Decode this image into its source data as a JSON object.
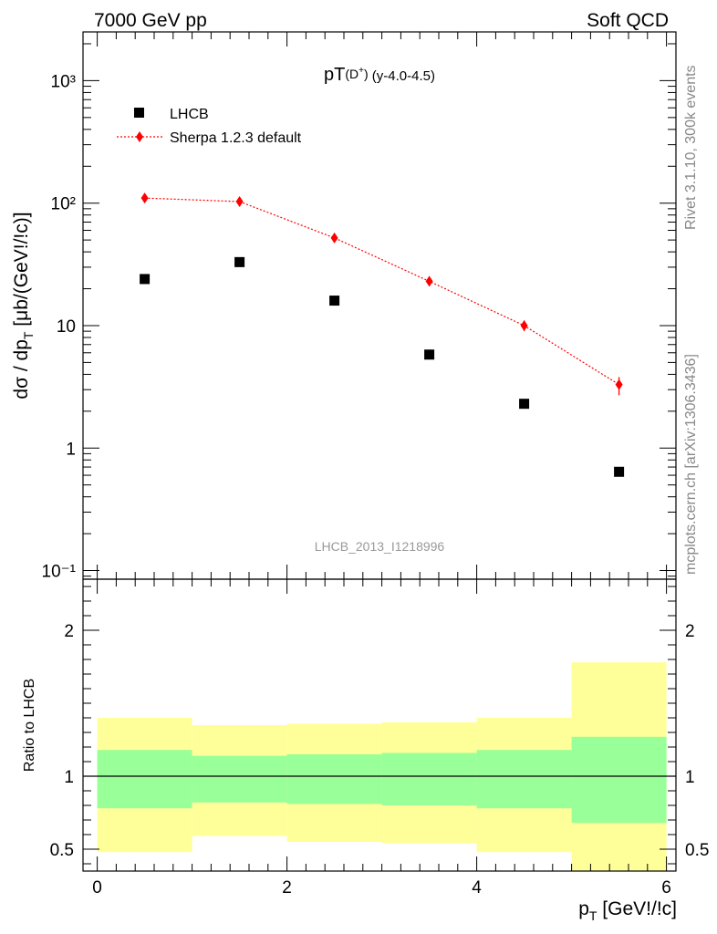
{
  "header": {
    "left": "7000 GeV pp",
    "right": "Soft QCD"
  },
  "side_labels": {
    "rivet": "Rivet 3.1.10,  300k events",
    "mcplots": "mcplots.cern.ch [arXiv:1306.3436]"
  },
  "chart_data": [
    {
      "type": "scatter",
      "title": "pT(D⁺) (y-4.0-4.5)",
      "ylabel": "dσ / dp_T [μb/(GeV!/!c)]",
      "xlabel": "p_T [GeV!/!c]",
      "yscale": "log",
      "xlim": [
        -0.15,
        6.1
      ],
      "ylim": [
        0.085,
        2500
      ],
      "ytick_labels": [
        "10⁻¹",
        "1",
        "10",
        "10²",
        "10³"
      ],
      "watermark": "LHCB_2013_I1218996",
      "legend_position": "top-left",
      "legend": [
        "LHCB",
        "Sherpa 1.2.3 default"
      ],
      "series": [
        {
          "name": "LHCB",
          "color": "#000000",
          "marker": "square",
          "x": [
            0.5,
            1.5,
            2.5,
            3.5,
            4.5,
            5.5
          ],
          "y": [
            24,
            33,
            16,
            5.8,
            2.3,
            0.64
          ]
        },
        {
          "name": "Sherpa 1.2.3 default",
          "color": "#ff0000",
          "marker": "diamond",
          "line": "dotted",
          "x": [
            0.5,
            1.5,
            2.5,
            3.5,
            4.5,
            5.5
          ],
          "y": [
            110,
            103,
            52,
            23,
            10,
            3.3
          ],
          "yerr_low": [
            0,
            0,
            0,
            0,
            1.0,
            0.6
          ],
          "yerr_high": [
            0,
            0,
            0,
            0,
            1.0,
            0.5
          ]
        }
      ]
    },
    {
      "type": "area",
      "ylabel": "Ratio to LHCB",
      "xlabel": "p_T [GeV!/!c]",
      "xlim": [
        -0.15,
        6.1
      ],
      "ylim": [
        0.35,
        2.35
      ],
      "xticks": [
        0,
        2,
        4,
        6
      ],
      "ytick_labels": [
        "0.5",
        "1",
        "2"
      ],
      "reference_line": 1,
      "bins": [
        [
          0,
          1
        ],
        [
          1,
          2
        ],
        [
          2,
          3
        ],
        [
          3,
          4
        ],
        [
          4,
          5
        ],
        [
          5,
          6
        ]
      ],
      "bands": [
        {
          "color": "#ffff99",
          "low": [
            0.48,
            0.59,
            0.55,
            0.54,
            0.48,
            0.35
          ],
          "high": [
            1.4,
            1.35,
            1.36,
            1.37,
            1.4,
            1.78
          ]
        },
        {
          "color": "#99ff99",
          "low": [
            0.78,
            0.82,
            0.81,
            0.8,
            0.78,
            0.68
          ],
          "high": [
            1.18,
            1.14,
            1.15,
            1.16,
            1.18,
            1.27
          ]
        }
      ]
    }
  ]
}
